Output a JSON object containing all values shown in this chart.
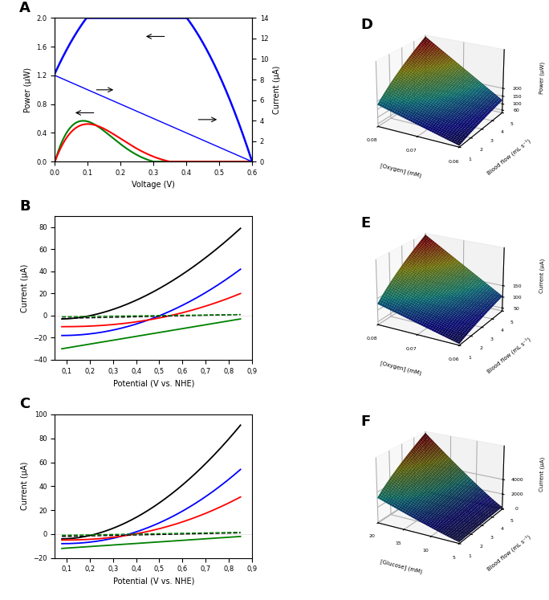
{
  "panel_A": {
    "label": "A",
    "xlabel": "Voltage (V)",
    "ylabel_left": "Power (μW)",
    "ylabel_right": "Current (μA)",
    "xlim": [
      0.0,
      0.6
    ],
    "ylim_left": [
      0.0,
      2.0
    ],
    "ylim_right": [
      0,
      14
    ],
    "yticks_left": [
      0.0,
      0.4,
      0.8,
      1.2,
      1.6,
      2.0
    ],
    "yticks_right": [
      0,
      2,
      4,
      6,
      8,
      10,
      12,
      14
    ],
    "xticks": [
      0.0,
      0.1,
      0.2,
      0.3,
      0.4,
      0.5,
      0.6
    ]
  },
  "panel_B": {
    "label": "B",
    "xlabel": "Potential (V vs. NHE)",
    "ylabel": "Current (μA)",
    "xlim": [
      0.05,
      0.9
    ],
    "ylim": [
      -40,
      90
    ],
    "xticks": [
      0.1,
      0.2,
      0.3,
      0.4,
      0.5,
      0.6,
      0.7,
      0.8,
      0.9
    ],
    "xticklabels": [
      "0,1",
      "0,2",
      "0,3",
      "0,4",
      "0,5",
      "0,6",
      "0,7",
      "0,8",
      "0,9"
    ],
    "yticks": [
      -40,
      -20,
      0,
      20,
      40,
      60,
      80
    ]
  },
  "panel_C": {
    "label": "C",
    "xlabel": "Potential (V vs. NHE)",
    "ylabel": "Current (μA)",
    "xlim": [
      0.05,
      0.9
    ],
    "ylim": [
      -20,
      100
    ],
    "xticks": [
      0.1,
      0.2,
      0.3,
      0.4,
      0.5,
      0.6,
      0.7,
      0.8,
      0.9
    ],
    "xticklabels": [
      "0,1",
      "0,2",
      "0,3",
      "0,4",
      "0,5",
      "0,6",
      "0,7",
      "0,8",
      "0,9"
    ],
    "yticks": [
      -20,
      0,
      20,
      40,
      60,
      80,
      100
    ]
  },
  "panel_D": {
    "label": "D",
    "xlabel": "[Oxygen] (mM)",
    "ylabel": "Power (μW)",
    "flow_label": "Blood flow (mL s⁻¹)",
    "o2_range": [
      0.06,
      0.08
    ],
    "flow_range": [
      1,
      5
    ],
    "zticks": [
      60,
      100,
      150,
      200
    ],
    "flow_ticks": [
      1,
      2,
      3,
      4,
      5
    ],
    "o2_ticks": [
      0.06,
      0.07,
      0.08
    ]
  },
  "panel_E": {
    "label": "E",
    "xlabel": "[Oxygen] (mM)",
    "ylabel": "Current (μA)",
    "flow_label": "Blood flow (mL s⁻¹)",
    "o2_range": [
      0.06,
      0.08
    ],
    "flow_range": [
      1,
      5
    ],
    "zticks": [
      50,
      100,
      150
    ],
    "flow_ticks": [
      1,
      2,
      3,
      4,
      5
    ],
    "o2_ticks": [
      0.06,
      0.07,
      0.08
    ]
  },
  "panel_F": {
    "label": "F",
    "xlabel": "[Glucose] (mM)",
    "ylabel": "Current (μA)",
    "flow_label": "Blood flow (mL s⁻¹)",
    "glucose_range": [
      5,
      20
    ],
    "flow_range": [
      1,
      5
    ],
    "zticks": [
      0,
      2000,
      4000
    ],
    "flow_ticks": [
      1,
      2,
      3,
      4,
      5
    ],
    "glucose_ticks": [
      5,
      10,
      15,
      20
    ]
  }
}
